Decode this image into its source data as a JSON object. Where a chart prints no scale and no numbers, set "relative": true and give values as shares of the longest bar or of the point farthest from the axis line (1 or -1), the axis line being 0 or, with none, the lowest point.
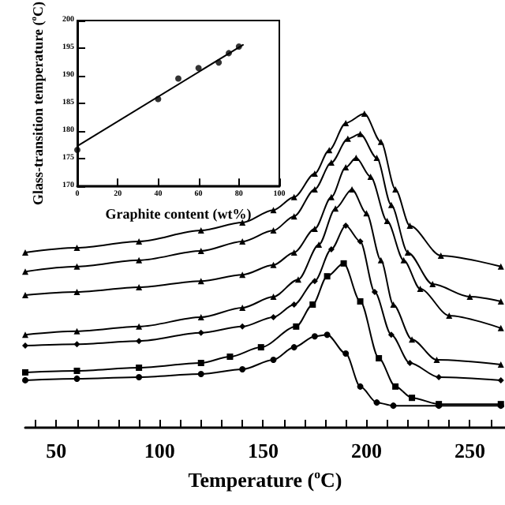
{
  "chart_data": [
    {
      "type": "line",
      "relative": true,
      "xlabel": "Temperature ($^{o}$C)",
      "xlim": [
        35,
        267
      ],
      "line_style": "solid",
      "xticks": [
        {
          "value": 40,
          "label": null
        },
        50,
        {
          "value": 60,
          "label": null
        },
        {
          "value": 70,
          "label": null
        },
        {
          "value": 80,
          "label": null
        },
        {
          "value": 90,
          "label": null
        },
        100,
        {
          "value": 110,
          "label": null
        },
        {
          "value": 120,
          "label": null
        },
        {
          "value": 130,
          "label": null
        },
        {
          "value": 140,
          "label": null
        },
        150,
        {
          "value": 160,
          "label": null
        },
        {
          "value": 170,
          "label": null
        },
        {
          "value": 180,
          "label": null
        },
        {
          "value": 190,
          "label": null
        },
        200,
        {
          "value": 210,
          "label": null
        },
        {
          "value": 220,
          "label": null
        },
        {
          "value": 230,
          "label": null
        },
        {
          "value": 240,
          "label": null
        },
        250,
        {
          "value": 260,
          "label": null
        }
      ],
      "series": [
        {
          "color": "#000000",
          "marker": "triangle",
          "x": [
            35,
            60,
            90,
            120,
            140,
            155,
            165,
            175,
            182,
            190,
            199,
            207,
            214,
            221,
            236,
            265
          ],
          "values": [
            0.558,
            0.573,
            0.593,
            0.628,
            0.653,
            0.693,
            0.734,
            0.809,
            0.884,
            0.97,
            1,
            0.91,
            0.759,
            0.643,
            0.548,
            0.513
          ]
        },
        {
          "color": "#000000",
          "marker": "triangle",
          "x": [
            35,
            60,
            90,
            120,
            140,
            155,
            165,
            175,
            183,
            191,
            197,
            205,
            212,
            220,
            232,
            250,
            265
          ],
          "values": [
            0.497,
            0.513,
            0.533,
            0.563,
            0.593,
            0.628,
            0.673,
            0.759,
            0.844,
            0.92,
            0.935,
            0.859,
            0.709,
            0.558,
            0.457,
            0.417,
            0.402
          ]
        },
        {
          "color": "#000000",
          "marker": "triangle",
          "x": [
            35,
            60,
            90,
            120,
            140,
            155,
            165,
            175,
            183,
            190,
            195,
            202,
            210,
            218,
            226,
            240,
            265
          ],
          "values": [
            0.422,
            0.432,
            0.447,
            0.467,
            0.487,
            0.518,
            0.558,
            0.633,
            0.734,
            0.829,
            0.859,
            0.799,
            0.658,
            0.533,
            0.442,
            0.357,
            0.317
          ]
        },
        {
          "color": "#000000",
          "marker": "triangle",
          "x": [
            35,
            60,
            90,
            120,
            140,
            155,
            167,
            177,
            185,
            193,
            200,
            207,
            213,
            222,
            234,
            265
          ],
          "values": [
            0.296,
            0.307,
            0.322,
            0.352,
            0.382,
            0.417,
            0.472,
            0.583,
            0.698,
            0.759,
            0.683,
            0.533,
            0.392,
            0.281,
            0.216,
            0.201
          ]
        },
        {
          "color": "#000000",
          "marker": "diamond",
          "x": [
            35,
            60,
            90,
            120,
            140,
            155,
            165,
            175,
            183,
            190,
            197,
            204,
            212,
            221,
            235,
            265
          ],
          "values": [
            0.261,
            0.266,
            0.276,
            0.302,
            0.322,
            0.352,
            0.392,
            0.467,
            0.568,
            0.643,
            0.593,
            0.432,
            0.296,
            0.206,
            0.161,
            0.151
          ]
        },
        {
          "color": "#000000",
          "marker": "square",
          "x": [
            35,
            60,
            90,
            120,
            134,
            149,
            166,
            174,
            181,
            189,
            197,
            206,
            214,
            222,
            235,
            265
          ],
          "values": [
            0.176,
            0.181,
            0.191,
            0.206,
            0.226,
            0.256,
            0.322,
            0.392,
            0.482,
            0.523,
            0.402,
            0.221,
            0.131,
            0.095,
            0.075,
            0.075
          ]
        },
        {
          "color": "#000000",
          "marker": "circle",
          "x": [
            35,
            60,
            90,
            120,
            140,
            155,
            165,
            175,
            181,
            190,
            197,
            205,
            213,
            235,
            265
          ],
          "values": [
            0.151,
            0.156,
            0.161,
            0.171,
            0.186,
            0.216,
            0.256,
            0.291,
            0.296,
            0.236,
            0.131,
            0.08,
            0.07,
            0.07,
            0.07
          ]
        }
      ]
    },
    {
      "type": "scatter",
      "xlabel": "Graphite content (wt%)",
      "ylabel": "Glass-transition temperature ($^{o}$C)",
      "xlim": [
        0,
        100
      ],
      "xticks": [
        0,
        20,
        40,
        60,
        80,
        100
      ],
      "ylim": [
        170,
        200
      ],
      "yticks": [
        170,
        175,
        180,
        185,
        190,
        195,
        200
      ],
      "series": [
        {
          "color": "#000000",
          "marker": "circle",
          "x": [
            0,
            40,
            50,
            60,
            70,
            75,
            80
          ],
          "values": [
            176.6,
            185.8,
            189.5,
            191.4,
            192.4,
            194.1,
            195.3
          ]
        },
        {
          "type": "line",
          "color": "#000000",
          "marker": "none",
          "x": [
            0,
            82
          ],
          "values": [
            177.3,
            195.6
          ]
        }
      ]
    }
  ]
}
